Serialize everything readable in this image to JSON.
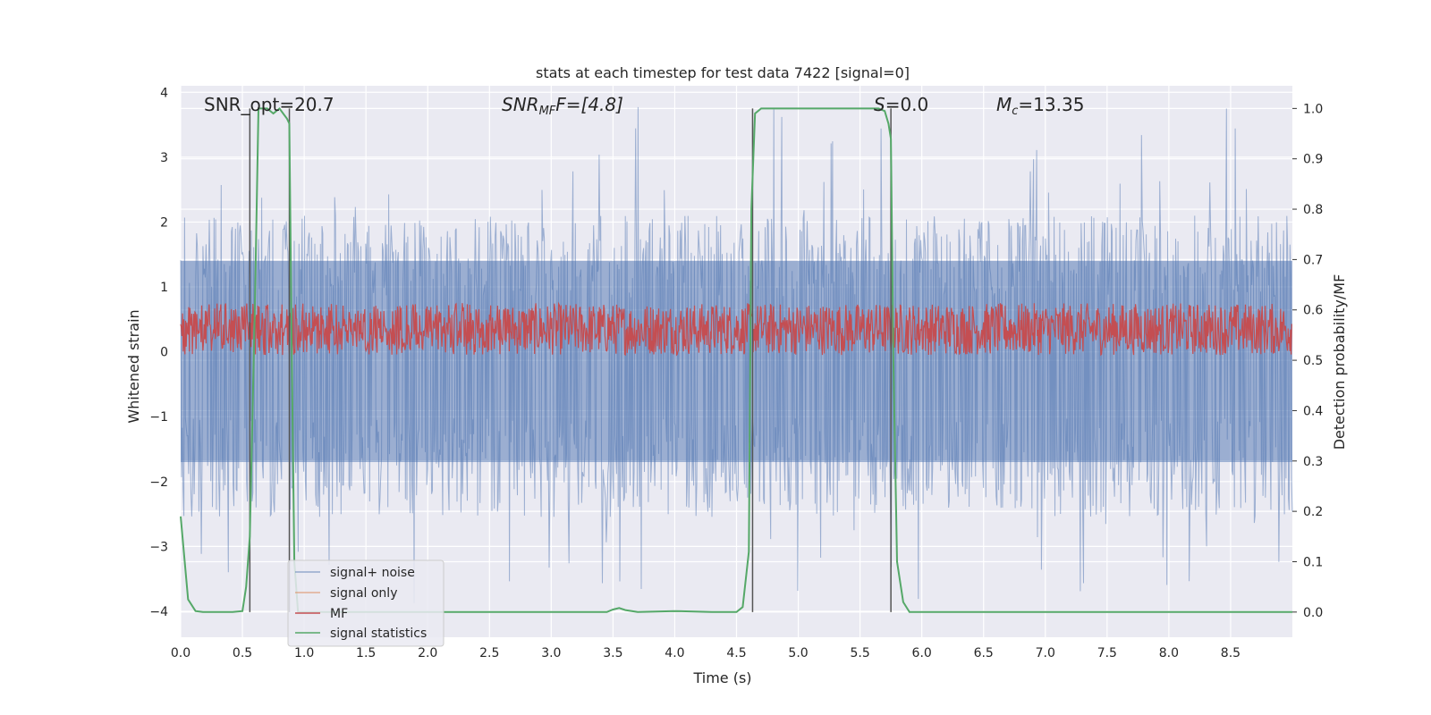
{
  "chart_data": {
    "type": "line",
    "title": "stats at each timestep for test data 7422 [signal=0]",
    "xlabel": "Time (s)",
    "ylabel": "Whitened strain",
    "y2label": "Detection probability/MF",
    "xlim": [
      0.0,
      9.0
    ],
    "ylim": [
      -4.4,
      4.1
    ],
    "y2lim": [
      -0.05,
      1.045
    ],
    "xticks": [
      "0.0",
      "0.5",
      "1.0",
      "1.5",
      "2.0",
      "2.5",
      "3.0",
      "3.5",
      "4.0",
      "4.5",
      "5.0",
      "5.5",
      "6.0",
      "6.5",
      "7.0",
      "7.5",
      "8.0",
      "8.5"
    ],
    "yticks": [
      "4",
      "3",
      "2",
      "1",
      "0",
      "−1",
      "−2",
      "−3",
      "−4"
    ],
    "y2ticks": [
      "1.0",
      "0.9",
      "0.8",
      "0.7",
      "0.6",
      "0.5",
      "0.4",
      "0.3",
      "0.2",
      "0.1",
      "0.0"
    ],
    "grid": true,
    "legend_placement": "lower-left",
    "legend": [
      "signal+ noise",
      "signal only",
      "MF",
      "signal statistics"
    ],
    "annotations": {
      "snr_opt": "SNR_opt=20.7",
      "snr_mf_base": "SNR",
      "snr_mf_sub": "MF",
      "snr_mf_rest": "F=[4.8]",
      "s_base": "S",
      "s_rest": "=0.0",
      "mc_base": "M",
      "mc_sub": "c",
      "mc_rest": "=13.35"
    },
    "series": [
      {
        "name": "signal+ noise",
        "color": "#4c72b0",
        "style": "noise",
        "band_min": -1.7,
        "band_max": 1.4,
        "extreme_min": -3.9,
        "extreme_max": 3.85
      },
      {
        "name": "signal only",
        "color": "#dd8452",
        "values": []
      },
      {
        "name": "MF",
        "color": "#c44e52",
        "style": "noise",
        "band_min": -0.05,
        "band_max": 0.75
      },
      {
        "name": "signal statistics",
        "color": "#55a868",
        "axis": "right",
        "x": [
          0.0,
          0.06,
          0.12,
          0.18,
          0.3,
          0.42,
          0.5,
          0.53,
          0.56,
          0.6,
          0.63,
          0.66,
          0.7,
          0.75,
          0.8,
          0.83,
          0.86,
          0.88,
          0.9,
          0.92,
          0.95,
          1.0,
          1.2,
          2.0,
          3.0,
          3.45,
          3.5,
          3.55,
          3.6,
          3.7,
          4.0,
          4.3,
          4.5,
          4.55,
          4.6,
          4.62,
          4.65,
          4.7,
          4.8,
          5.5,
          5.65,
          5.7,
          5.73,
          5.75,
          5.77,
          5.8,
          5.85,
          5.9,
          6.0,
          7.0,
          8.0,
          9.0
        ],
        "y": [
          0.19,
          0.025,
          0.002,
          0.0,
          0.0,
          0.0,
          0.002,
          0.05,
          0.15,
          0.6,
          1.0,
          1.0,
          1.0,
          0.99,
          1.0,
          0.99,
          0.98,
          0.97,
          0.5,
          0.1,
          0.0,
          0.0,
          0.0,
          0.0,
          0.0,
          0.0,
          0.005,
          0.008,
          0.004,
          0.0,
          0.002,
          0.0,
          0.0,
          0.01,
          0.12,
          0.8,
          0.99,
          1.0,
          1.0,
          1.0,
          1.0,
          0.995,
          0.97,
          0.94,
          0.5,
          0.1,
          0.02,
          0.0,
          0.0,
          0.0,
          0.0,
          0.0
        ]
      },
      {
        "name": "vertical markers",
        "color": "#555555",
        "x": [
          0.56,
          0.88,
          4.63,
          5.75
        ],
        "y_top": 1.0,
        "y_bottom": 0.0
      }
    ]
  }
}
